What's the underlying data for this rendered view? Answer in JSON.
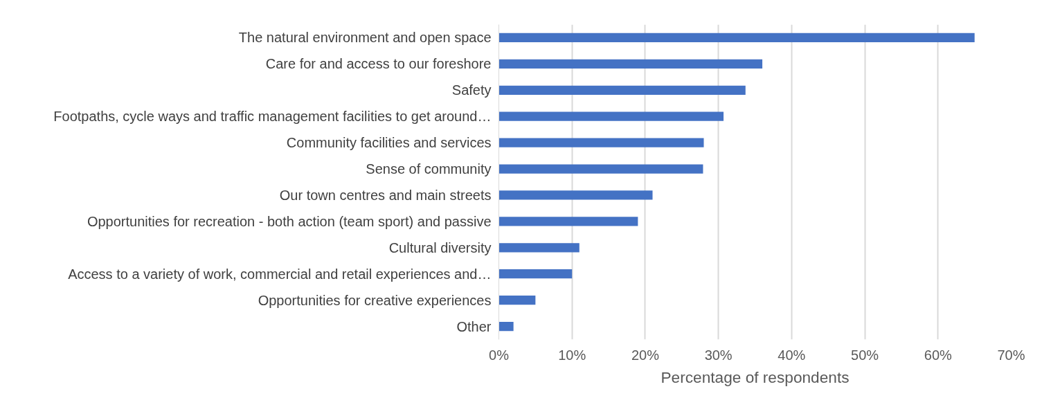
{
  "chart_data": {
    "type": "bar",
    "orientation": "horizontal",
    "xlabel": "Percentage of respondents",
    "categories": [
      "The natural environment and open space",
      "Care for and access to our foreshore",
      "Safety",
      "Footpaths, cycle ways and traffic management facilities to get around…",
      "Community facilities and services",
      "Sense of community",
      "Our town centres and main streets",
      "Opportunities for recreation - both action (team sport) and passive",
      "Cultural diversity",
      "Access to a variety of work, commercial and retail experiences and…",
      "Opportunities for creative experiences",
      "Other"
    ],
    "values": [
      65,
      36,
      33.7,
      30.7,
      28,
      27.9,
      21,
      19,
      11,
      10,
      5,
      2
    ],
    "color": "#4472c4",
    "xlim": [
      0,
      70
    ],
    "xticks": [
      {
        "value": 0,
        "label": "0%"
      },
      {
        "value": 10,
        "label": "10%"
      },
      {
        "value": 20,
        "label": "20%"
      },
      {
        "value": 30,
        "label": "30%"
      },
      {
        "value": 40,
        "label": "40%"
      },
      {
        "value": 50,
        "label": "50%"
      },
      {
        "value": 60,
        "label": "60%"
      },
      {
        "value": 70,
        "label": "70%"
      }
    ],
    "grid": "x"
  }
}
